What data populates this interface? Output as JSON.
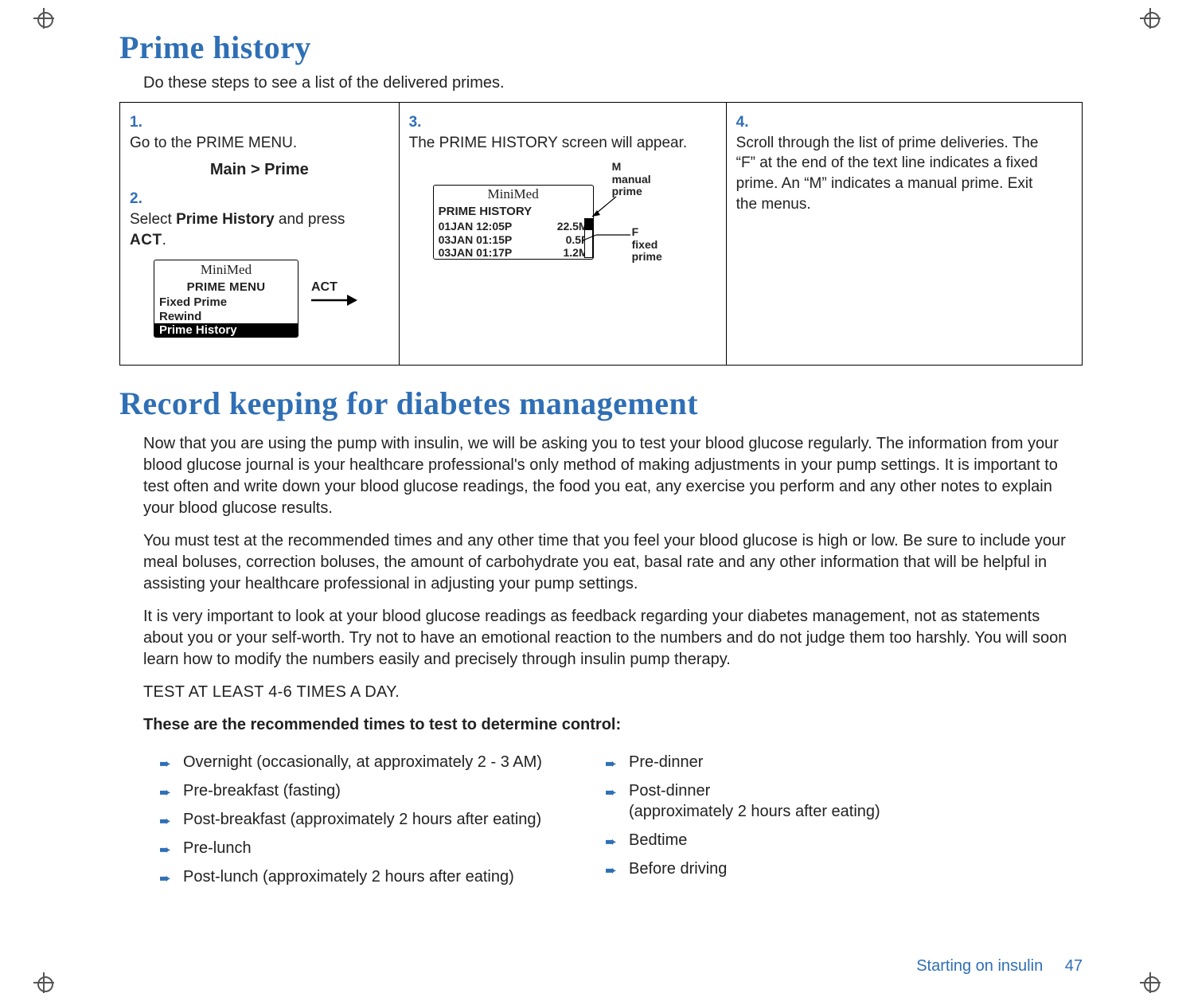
{
  "colors": {
    "accent": "#2f6fb5",
    "text": "#222222",
    "border": "#000000",
    "background": "#ffffff"
  },
  "section1": {
    "title": "Prime history",
    "intro": "Do these steps to see a list of the delivered primes."
  },
  "steps": {
    "col_widths_pct": [
      29,
      34,
      37
    ],
    "s1": {
      "num": "1.",
      "text_a": "Go to the ",
      "text_b": "PRIME MENU",
      "text_c": ".",
      "breadcrumb": "Main > Prime"
    },
    "s2": {
      "num": "2.",
      "text_a": "Select ",
      "text_b": "Prime History",
      "text_c": " and press ",
      "text_d": "ACT",
      "text_e": "."
    },
    "s3": {
      "num": "3.",
      "text_a": "The ",
      "text_b": "PRIME HISTORY",
      "text_c": " screen will appear."
    },
    "s4": {
      "num": "4.",
      "text": "Scroll through the list of prime deliveries. The “F” at the end of the text line indicates a fixed prime. An “M” indicates a manual prime. Exit the menus."
    }
  },
  "device_menu": {
    "brand": "MiniMed",
    "title": "PRIME MENU",
    "rows": [
      "Fixed Prime",
      "Rewind",
      "Prime History"
    ],
    "selected_index": 2,
    "act_label": "ACT"
  },
  "device_history": {
    "brand": "MiniMed",
    "title": "PRIME HISTORY",
    "rows": [
      {
        "date": "01JAN 12:05P",
        "val": "22.5M"
      },
      {
        "date": "03JAN 01:15P",
        "val": "0.5F"
      },
      {
        "date": "03JAN 01:17P",
        "val": "1.2M"
      }
    ],
    "callout_m_1": "M",
    "callout_m_2": "manual",
    "callout_m_3": "prime",
    "callout_f_1": "F",
    "callout_f_2": "fixed",
    "callout_f_3": "prime"
  },
  "section2": {
    "title": "Record keeping for diabetes management",
    "p1": "Now that you are using the pump with insulin, we will be asking you to test your blood glucose regularly. The information from your blood glucose journal is your healthcare professional's only method of making adjustments in your pump settings. It is important to test often and write down your blood glucose readings, the food you eat, any exercise you perform and any other notes to explain your blood glucose results.",
    "p2": "You must test at the recommended times and any other time that you feel your blood glucose is high or low. Be sure to include your meal boluses, correction boluses, the amount of carbohydrate you eat, basal rate and any other information that will be helpful in assisting your healthcare professional in adjusting your pump settings.",
    "p3": "It is very important to look at your blood glucose readings as feedback regarding your diabetes management, not as statements about you or your self-worth. Try not to have an emotional reaction to the numbers and do not judge them too harshly. You will soon learn how to modify the numbers easily and precisely through insulin pump therapy.",
    "p4": "TEST AT LEAST 4-6 TIMES A DAY.",
    "lead": "These are the recommended times to test to determine control:",
    "times_left": [
      "Overnight (occasionally, at approximately 2 - 3 AM)",
      "Pre-breakfast (fasting)",
      "Post-breakfast (approximately 2 hours after eating)",
      "Pre-lunch",
      "Post-lunch (approximately 2 hours after eating)"
    ],
    "times_right": [
      "Pre-dinner",
      "Post-dinner\n(approximately 2 hours after eating)",
      "Bedtime",
      "Before driving"
    ]
  },
  "footer": {
    "chapter": "Starting on insulin",
    "page": "47"
  }
}
